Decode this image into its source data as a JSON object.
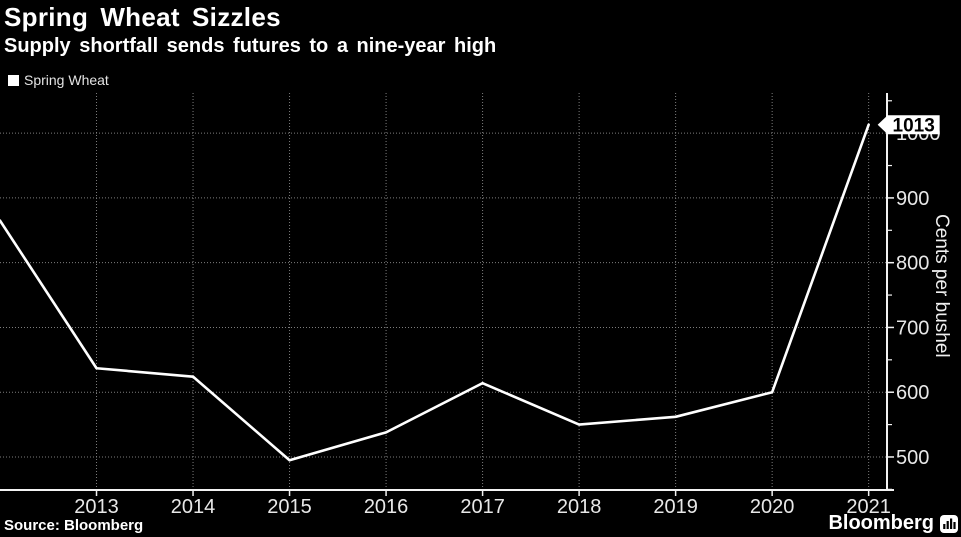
{
  "header": {
    "title": "Spring Wheat Sizzles",
    "subtitle": "Supply shortfall sends futures to a nine-year high"
  },
  "legend": {
    "label": "Spring Wheat",
    "marker_color": "#ffffff"
  },
  "footer": {
    "source": "Source: Bloomberg",
    "branding": "Bloomberg",
    "branding_icon": "bar-chart-icon"
  },
  "chart_data": {
    "type": "line",
    "title": "Spring Wheat Sizzles",
    "subtitle": "Supply shortfall sends futures to a nine-year high",
    "xlabel": "",
    "ylabel": "Cents per bushel",
    "legend_position": "top-left",
    "grid": true,
    "series": [
      {
        "name": "Spring Wheat",
        "x": [
          2012,
          2013,
          2014,
          2015,
          2016,
          2017,
          2018,
          2019,
          2020,
          2021
        ],
        "values": [
          865,
          637,
          624,
          495,
          538,
          614,
          550,
          562,
          600,
          1013
        ]
      }
    ],
    "end_label": "1013",
    "x_ticks": [
      2013,
      2014,
      2015,
      2016,
      2017,
      2018,
      2019,
      2020,
      2021
    ],
    "y_ticks": [
      500,
      600,
      700,
      800,
      900,
      1000
    ],
    "y_minor_ticks": [
      450,
      550,
      650,
      750,
      850,
      950,
      1050
    ],
    "xlim": [
      2012,
      2021.19
    ],
    "ylim": [
      449,
      1062
    ],
    "colors": {
      "background": "#000000",
      "line": "#ffffff",
      "grid": "#7d7d7d",
      "axis": "#f2f2f2",
      "tick_text": "#e8e8e8",
      "callout_bg": "#ffffff",
      "callout_text": "#000000"
    }
  }
}
